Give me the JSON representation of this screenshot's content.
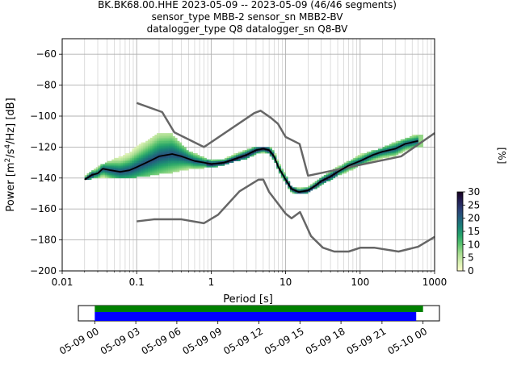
{
  "title": {
    "line1": "BK.BK68.00.HHE   2023-05-09 -- 2023-05-09  (46/46 segments)",
    "line2": "sensor_type MBB-2 sensor_sn MBB2-BV",
    "line3": "datalogger_type Q8 datalogger_sn Q8-BV"
  },
  "colors": {
    "model_curves": "#666666",
    "mode_curve": "#000000",
    "segments_bar": "#008000",
    "coverage_bar": "#0000ff",
    "colormap": [
      "#ffffcc",
      "#d6efb0",
      "#a6dc8f",
      "#5cc46f",
      "#27a56a",
      "#1a8276",
      "#225f7c",
      "#2a3e74",
      "#221d52",
      "#18001f"
    ]
  },
  "chart_data": [
    {
      "type": "heatmap",
      "description_kind": "probabilistic power spectral density",
      "xlabel": "Period [s]",
      "ylabel": "Power [m²/s⁴/Hz] [dB]",
      "xscale": "log",
      "xlim": [
        0.01,
        1000
      ],
      "ylim": [
        -200,
        -50
      ],
      "xticks": [
        "0.01",
        "0.1",
        "1",
        "10",
        "100",
        "1000"
      ],
      "yticks": [
        "−200",
        "−180",
        "−160",
        "−140",
        "−120",
        "−100",
        "−80",
        "−60"
      ],
      "grid": true,
      "colorbar": {
        "label": "[%]",
        "range": [
          0,
          30
        ],
        "ticks": [
          "0",
          "5",
          "10",
          "15",
          "20",
          "25",
          "30"
        ]
      },
      "series": [
        {
          "kind": "noise_model_high",
          "x": [
            0.1,
            0.22,
            0.32,
            0.8,
            3.8,
            4.6,
            6.3,
            7.9,
            10.0,
            15.4,
            20.0,
            354.8,
            1000
          ],
          "y": [
            -91.5,
            -97.4,
            -110.5,
            -120.0,
            -98.0,
            -96.5,
            -101.0,
            -105.0,
            -113.5,
            -118.0,
            -138.5,
            -126.0,
            -111.0
          ]
        },
        {
          "kind": "noise_model_low",
          "x": [
            0.1,
            0.17,
            0.4,
            0.8,
            1.24,
            2.4,
            4.3,
            5.0,
            6.0,
            10.0,
            12.0,
            15.6,
            21.9,
            31.6,
            45.0,
            70.0,
            101.0,
            154.0,
            328.0,
            600.0,
            1000
          ],
          "y": [
            -168.0,
            -166.7,
            -166.7,
            -169.2,
            -163.7,
            -148.6,
            -141.1,
            -141.0,
            -149.0,
            -163.0,
            -166.0,
            -162.0,
            -177.5,
            -185.0,
            -187.5,
            -187.5,
            -185.0,
            -185.0,
            -187.5,
            -184.4,
            -178.0
          ]
        },
        {
          "kind": "mode",
          "x": [
            0.02,
            0.025,
            0.03,
            0.035,
            0.045,
            0.06,
            0.08,
            0.1,
            0.15,
            0.2,
            0.3,
            0.4,
            0.6,
            0.8,
            1.0,
            1.5,
            2.0,
            3.0,
            4.0,
            5.0,
            6.0,
            7.0,
            8.0,
            10.0,
            12.0,
            15.0,
            20.0,
            25.0,
            30.0,
            40.0,
            50.0,
            70.0,
            100.0,
            150.0,
            200.0,
            300.0,
            400.0,
            600.0
          ],
          "y": [
            -141,
            -138,
            -137,
            -134,
            -135,
            -136,
            -135,
            -133,
            -129,
            -126,
            -124.5,
            -126,
            -129,
            -130,
            -131,
            -130,
            -128,
            -125,
            -122,
            -121,
            -122,
            -126,
            -133,
            -141,
            -147,
            -149,
            -148,
            -145,
            -142,
            -139,
            -136,
            -132,
            -129,
            -125,
            -123,
            -121,
            -118,
            -116
          ]
        }
      ],
      "density": [
        {
          "x": [
            0.02,
            0.03,
            0.05,
            0.08,
            0.1,
            0.15,
            0.2,
            0.3,
            0.5,
            0.8,
            1.0,
            1.5,
            2.0,
            3.0,
            4.0,
            5.0,
            6.0,
            7.0,
            8.0,
            10.0,
            12.0,
            15.0,
            20.0,
            30.0,
            50.0,
            80.0,
            100.0,
            200.0,
            300.0,
            400.0,
            500.0,
            700.0
          ],
          "y_low": [
            -141,
            -139,
            -140,
            -140,
            -139,
            -138,
            -137,
            -136,
            -134,
            -133,
            -133,
            -131,
            -129,
            -127,
            -124,
            -123,
            -124,
            -128,
            -135,
            -143,
            -149,
            -150,
            -149,
            -144,
            -138,
            -134,
            -131,
            -127,
            -125,
            -122,
            -120,
            -119
          ],
          "y_high": [
            -139,
            -133,
            -128,
            -124,
            -120,
            -115,
            -111,
            -112,
            -123,
            -127,
            -129,
            -128,
            -125,
            -122,
            -120,
            -120,
            -120,
            -123,
            -130,
            -138,
            -146,
            -147,
            -146,
            -140,
            -133,
            -128,
            -125,
            -121,
            -117,
            -115,
            -113,
            -112
          ]
        }
      ]
    },
    {
      "type": "bar",
      "description_kind": "data availability timeline",
      "xticks": [
        "05-09 00",
        "05-09 03",
        "05-09 06",
        "05-09 09",
        "05-09 12",
        "05-09 15",
        "05-09 18",
        "05-09 21",
        "05-10 00"
      ],
      "xrange_hours": [
        -1.2,
        25.2
      ],
      "bars": [
        {
          "kind": "segments",
          "start_hour": 0.0,
          "end_hour": 24.0
        },
        {
          "kind": "coverage",
          "start_hour": 0.0,
          "end_hour": 23.5
        }
      ]
    }
  ]
}
